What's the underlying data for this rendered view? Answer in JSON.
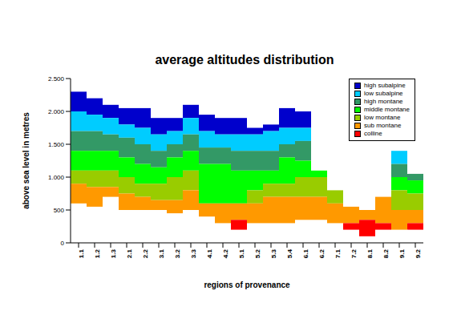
{
  "chart_data": {
    "type": "bar",
    "title": "average altitudes distribution",
    "x_label": "regions of provenance",
    "y_label": "above sea level in metres",
    "categories": [
      "1.1",
      "1.2",
      "1.3",
      "2.1",
      "2.2",
      "3.1",
      "3.2",
      "3.3",
      "4.1",
      "4.2",
      "5.1",
      "5.2",
      "5.3",
      "5.4",
      "6.1",
      "6.2",
      "7.1",
      "7.2",
      "8.1",
      "8.2",
      "9.1",
      "9.2"
    ],
    "series": [
      {
        "name": "high subalpine",
        "color": "#0000cc",
        "values": [
          [
            2000,
            2300
          ],
          [
            1950,
            2200
          ],
          [
            1900,
            2100
          ],
          [
            1800,
            2050
          ],
          [
            1750,
            2050
          ],
          [
            1650,
            1900
          ],
          [
            1700,
            1900
          ],
          [
            1900,
            2100
          ],
          [
            1700,
            1950
          ],
          [
            1650,
            1900
          ],
          [
            1650,
            1900
          ],
          [
            1650,
            1750
          ],
          [
            1700,
            1800
          ],
          [
            1750,
            2050
          ],
          [
            1750,
            2000
          ],
          null,
          null,
          null,
          null,
          null,
          null,
          null
        ]
      },
      {
        "name": "low subalpine",
        "color": "#00ccff",
        "values": [
          [
            1700,
            2000
          ],
          [
            1700,
            1950
          ],
          [
            1650,
            1900
          ],
          [
            1600,
            1800
          ],
          [
            1500,
            1750
          ],
          [
            1400,
            1650
          ],
          [
            1500,
            1700
          ],
          [
            1650,
            1900
          ],
          [
            1450,
            1700
          ],
          [
            1450,
            1650
          ],
          [
            1400,
            1650
          ],
          [
            1400,
            1650
          ],
          [
            1400,
            1700
          ],
          [
            1500,
            1750
          ],
          [
            1550,
            1750
          ],
          null,
          null,
          null,
          null,
          null,
          [
            1200,
            1400
          ],
          null
        ]
      },
      {
        "name": "high montane",
        "color": "#339966",
        "values": [
          [
            1400,
            1700
          ],
          [
            1400,
            1700
          ],
          [
            1400,
            1650
          ],
          [
            1300,
            1600
          ],
          [
            1200,
            1500
          ],
          [
            1150,
            1400
          ],
          [
            1300,
            1500
          ],
          [
            1400,
            1650
          ],
          [
            1200,
            1450
          ],
          [
            1200,
            1450
          ],
          [
            1100,
            1400
          ],
          [
            1100,
            1400
          ],
          [
            1100,
            1400
          ],
          [
            1300,
            1500
          ],
          [
            1250,
            1550
          ],
          null,
          null,
          null,
          null,
          null,
          [
            1000,
            1200
          ],
          [
            950,
            1050
          ]
        ]
      },
      {
        "name": "middle montane",
        "color": "#00ff00",
        "values": [
          [
            1100,
            1400
          ],
          [
            1100,
            1400
          ],
          [
            1100,
            1400
          ],
          [
            1000,
            1300
          ],
          [
            900,
            1200
          ],
          [
            900,
            1150
          ],
          [
            1000,
            1300
          ],
          [
            1100,
            1400
          ],
          [
            600,
            1200
          ],
          [
            600,
            1200
          ],
          [
            600,
            1100
          ],
          [
            800,
            1100
          ],
          [
            900,
            1100
          ],
          [
            900,
            1300
          ],
          [
            1000,
            1250
          ],
          [
            1000,
            1100
          ],
          null,
          null,
          null,
          null,
          [
            800,
            1000
          ],
          [
            750,
            950
          ]
        ]
      },
      {
        "name": "low montane",
        "color": "#99cc00",
        "values": [
          [
            900,
            1100
          ],
          [
            850,
            1100
          ],
          [
            850,
            1100
          ],
          [
            750,
            1000
          ],
          [
            700,
            900
          ],
          [
            650,
            900
          ],
          [
            650,
            1000
          ],
          [
            800,
            1100
          ],
          null,
          null,
          null,
          [
            600,
            800
          ],
          [
            700,
            900
          ],
          [
            700,
            900
          ],
          [
            700,
            1000
          ],
          [
            700,
            1000
          ],
          [
            600,
            800
          ],
          null,
          null,
          null,
          [
            500,
            800
          ],
          [
            500,
            750
          ]
        ]
      },
      {
        "name": "sub montane",
        "color": "#ff9900",
        "values": [
          [
            600,
            900
          ],
          [
            550,
            850
          ],
          [
            700,
            850
          ],
          [
            500,
            750
          ],
          [
            500,
            700
          ],
          [
            500,
            650
          ],
          [
            450,
            650
          ],
          [
            500,
            800
          ],
          [
            400,
            600
          ],
          [
            300,
            600
          ],
          [
            350,
            600
          ],
          [
            300,
            600
          ],
          [
            300,
            700
          ],
          [
            300,
            700
          ],
          [
            350,
            700
          ],
          [
            350,
            700
          ],
          [
            300,
            600
          ],
          [
            300,
            550
          ],
          [
            350,
            500
          ],
          [
            300,
            700
          ],
          [
            200,
            500
          ],
          [
            300,
            500
          ]
        ]
      },
      {
        "name": "colline",
        "color": "#ff0000",
        "values": [
          null,
          null,
          null,
          null,
          null,
          null,
          null,
          null,
          null,
          null,
          [
            200,
            350
          ],
          null,
          null,
          null,
          null,
          null,
          null,
          [
            200,
            300
          ],
          [
            100,
            350
          ],
          [
            200,
            300
          ],
          null,
          [
            200,
            300
          ]
        ]
      }
    ],
    "ylim": [
      0,
      2500
    ],
    "yticks": [
      0,
      500,
      {
        "value": 1000,
        "label": "1.000"
      },
      {
        "value": 1500,
        "label": "1.500"
      },
      {
        "value": 2000,
        "label": "2.000"
      },
      {
        "value": 2500,
        "label": "2.500"
      }
    ],
    "grid": false,
    "legend": "top-right"
  }
}
